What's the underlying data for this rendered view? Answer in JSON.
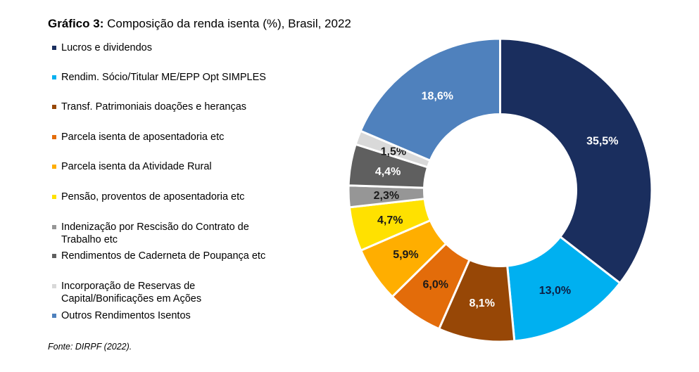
{
  "header": {
    "title_prefix": "Gráfico 3:",
    "title_rest": " Composição da renda isenta (%), Brasil, 2022"
  },
  "footer": {
    "source": "Fonte: DIRPF (2022)."
  },
  "chart_data": {
    "type": "pie",
    "variant": "donut",
    "title": "Gráfico 3: Composição da renda isenta (%), Brasil, 2022",
    "start": "top",
    "direction": "clockwise",
    "legend_position": "left",
    "unit": "%",
    "slices": [
      {
        "name": "Lucros e dividendos",
        "value": 35.5,
        "label": "35,5%",
        "color": "#1a2e5e",
        "label_color": "#ffffff"
      },
      {
        "name": "Rendim. Sócio/Titular ME/EPP Opt SIMPLES",
        "value": 13.0,
        "label": "13,0%",
        "color": "#00b0f0",
        "label_color": "#0d1f44"
      },
      {
        "name": "Transf. Patrimoniais doações e heranças",
        "value": 8.1,
        "label": "8,1%",
        "color": "#974706",
        "label_color": "#ffffff"
      },
      {
        "name": "Parcela isenta de aposentadoria etc",
        "value": 6.0,
        "label": "6,0%",
        "color": "#e36c0a",
        "label_color": "#1a1a1a"
      },
      {
        "name": "Parcela isenta da Atividade Rural",
        "value": 5.9,
        "label": "5,9%",
        "color": "#ffae00",
        "label_color": "#1a1a1a"
      },
      {
        "name": "Pensão, proventos de aposentadoria etc",
        "value": 4.7,
        "label": "4,7%",
        "color": "#ffe100",
        "label_color": "#1a1a1a"
      },
      {
        "name": "Indenização por Rescisão do Contrato de Trabalho etc",
        "value": 2.3,
        "label": "2,3%",
        "color": "#969696",
        "label_color": "#1a1a1a"
      },
      {
        "name": "Rendimentos de Caderneta de  Poupança etc",
        "value": 4.4,
        "label": "4,4%",
        "color": "#5f5f5f",
        "label_color": "#ffffff"
      },
      {
        "name": "Incorporação de Reservas de Capital/Bonificações em Ações",
        "value": 1.5,
        "label": "1,5%",
        "color": "#d9d9d9",
        "label_color": "#1a1a1a"
      },
      {
        "name": "Outros Rendimentos Isentos",
        "value": 18.6,
        "label": "18,6%",
        "color": "#4f81bd",
        "label_color": "#ffffff"
      }
    ],
    "legend": [
      {
        "lines": [
          "Lucros e dividendos"
        ],
        "color": "#1a2e5e"
      },
      {
        "lines": [
          "Rendim. Sócio/Titular ME/EPP Opt SIMPLES"
        ],
        "color": "#00b0f0"
      },
      {
        "lines": [
          "Transf. Patrimoniais doações e heranças"
        ],
        "color": "#974706"
      },
      {
        "lines": [
          "Parcela isenta de aposentadoria etc"
        ],
        "color": "#e36c0a"
      },
      {
        "lines": [
          "Parcela isenta da Atividade Rural"
        ],
        "color": "#ffae00"
      },
      {
        "lines": [
          "Pensão, proventos de aposentadoria etc"
        ],
        "color": "#ffe100"
      },
      {
        "lines": [
          "Indenização por Rescisão do Contrato de",
          "Trabalho etc"
        ],
        "color": "#969696"
      },
      {
        "lines": [
          "Rendimentos de Caderneta de  Poupança etc"
        ],
        "color": "#5f5f5f"
      },
      {
        "lines": [
          "Incorporação de Reservas de",
          "Capital/Bonificações em Ações"
        ],
        "color": "#d9d9d9"
      },
      {
        "lines": [
          "Outros Rendimentos Isentos"
        ],
        "color": "#4f81bd"
      }
    ]
  }
}
